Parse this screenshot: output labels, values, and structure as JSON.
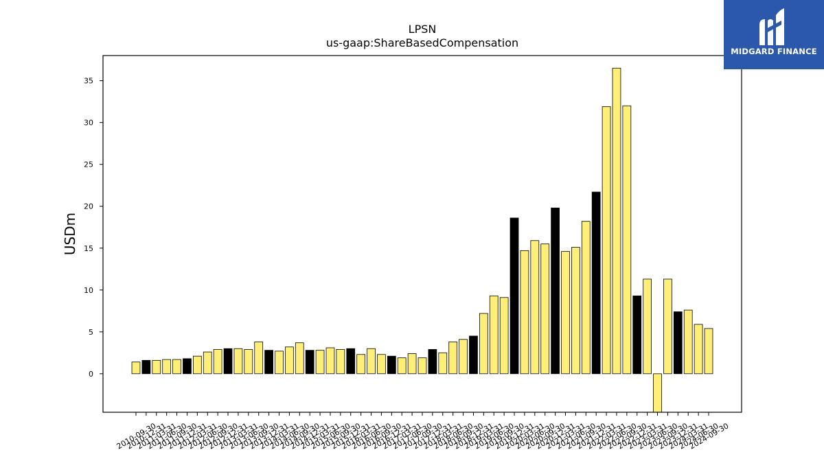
{
  "logo": {
    "text": "MIDGARD FINANCE",
    "icon": "midgard-logo-icon",
    "background": "#2b58ab"
  },
  "chart_data": {
    "type": "bar",
    "title": "LPSN",
    "subtitle": "us-gaap:ShareBasedCompensation",
    "xlabel": "",
    "ylabel": "USDm",
    "ylim": [
      -4.6,
      38
    ],
    "yticks": [
      0,
      5,
      10,
      15,
      20,
      25,
      30,
      35
    ],
    "grid": false,
    "colors": {
      "yellow": "#ffee77",
      "black": "#000000",
      "edge": "#000000"
    },
    "categories": [
      "2010-09-30",
      "2010-12-31",
      "2011-03-31",
      "2011-06-30",
      "2011-09-30",
      "2011-12-31",
      "2012-03-31",
      "2012-06-30",
      "2012-09-30",
      "2012-12-31",
      "2013-03-31",
      "2013-06-30",
      "2013-09-30",
      "2013-12-31",
      "2014-03-31",
      "2014-06-30",
      "2014-09-30",
      "2014-12-31",
      "2015-03-31",
      "2015-06-30",
      "2015-09-30",
      "2015-12-31",
      "2016-03-31",
      "2016-06-30",
      "2016-09-30",
      "2016-12-31",
      "2017-03-31",
      "2017-06-30",
      "2017-09-30",
      "2017-12-31",
      "2018-03-31",
      "2018-06-30",
      "2018-09-30",
      "2018-12-31",
      "2019-03-31",
      "2019-06-30",
      "2019-09-30",
      "2019-12-31",
      "2020-03-31",
      "2020-06-30",
      "2020-09-30",
      "2020-12-31",
      "2021-03-31",
      "2021-06-30",
      "2021-09-30",
      "2021-12-31",
      "2022-03-31",
      "2022-06-30",
      "2022-09-30",
      "2022-12-31",
      "2023-03-31",
      "2023-06-30",
      "2023-09-30",
      "2023-12-31",
      "2024-03-31",
      "2024-06-30",
      "2024-09-30"
    ],
    "values": [
      1.4,
      1.6,
      1.6,
      1.7,
      1.7,
      1.8,
      2.1,
      2.6,
      2.9,
      3.0,
      3.0,
      2.9,
      3.8,
      2.8,
      2.7,
      3.2,
      3.7,
      2.8,
      2.8,
      3.1,
      2.9,
      3.0,
      2.3,
      3.0,
      2.3,
      2.1,
      1.9,
      2.4,
      1.9,
      2.9,
      2.5,
      3.8,
      4.1,
      4.5,
      7.2,
      9.3,
      9.1,
      18.6,
      14.7,
      15.9,
      15.5,
      19.8,
      14.6,
      15.1,
      18.2,
      21.7,
      31.9,
      36.5,
      32.0,
      9.3,
      11.3,
      -4.6,
      11.3,
      7.4,
      7.6,
      5.9,
      5.4
    ],
    "bar_colors": [
      "yellow",
      "black",
      "yellow",
      "yellow",
      "yellow",
      "black",
      "yellow",
      "yellow",
      "yellow",
      "black",
      "yellow",
      "yellow",
      "yellow",
      "black",
      "yellow",
      "yellow",
      "yellow",
      "black",
      "yellow",
      "yellow",
      "yellow",
      "black",
      "yellow",
      "yellow",
      "yellow",
      "black",
      "yellow",
      "yellow",
      "yellow",
      "black",
      "yellow",
      "yellow",
      "yellow",
      "black",
      "yellow",
      "yellow",
      "yellow",
      "black",
      "yellow",
      "yellow",
      "yellow",
      "black",
      "yellow",
      "yellow",
      "yellow",
      "black",
      "yellow",
      "yellow",
      "yellow",
      "black",
      "yellow",
      "yellow",
      "yellow",
      "black",
      "yellow",
      "yellow",
      "yellow"
    ],
    "xtick_labels": [
      "2010-09-30",
      "2010-12-31",
      "2011-03-31",
      "2011-06-30",
      "2011-09-30",
      "2011-12-31",
      "2012-03-31",
      "2012-06-30",
      "2012-09-30",
      "2012-12-31",
      "2013-03-31",
      "2013-06-30",
      "2013-09-30",
      "2013-12-31",
      "2014-03-31",
      "2014-06-30",
      "2014-09-30",
      "2014-12-31",
      "2015-03-31",
      "2015-06-30",
      "2015-09-30",
      "2015-12-31",
      "2016-03-31",
      "2016-06-30",
      "2016-09-30",
      "2016-12-31",
      "2017-03-31",
      "2017-06-30",
      "2017-09-30",
      "2017-12-31",
      "2018-03-31",
      "2018-06-30",
      "2018-09-30",
      "2018-12-31",
      "2019-03-31",
      "2019-06-30",
      "2019-09-30",
      "2019-12-31",
      "2020-03-31",
      "2020-06-30",
      "2020-09-30",
      "2020-12-31",
      "2021-03-31",
      "2021-06-30",
      "2021-09-30",
      "2021-12-31",
      "2022-03-31",
      "2022-06-30",
      "2022-09-30",
      "2022-12-31",
      "2023-03-31",
      "2023-06-30",
      "2023-09-30",
      "2023-12-31",
      "2024-03-31",
      "2024-06-30",
      "2024-09-30"
    ]
  }
}
